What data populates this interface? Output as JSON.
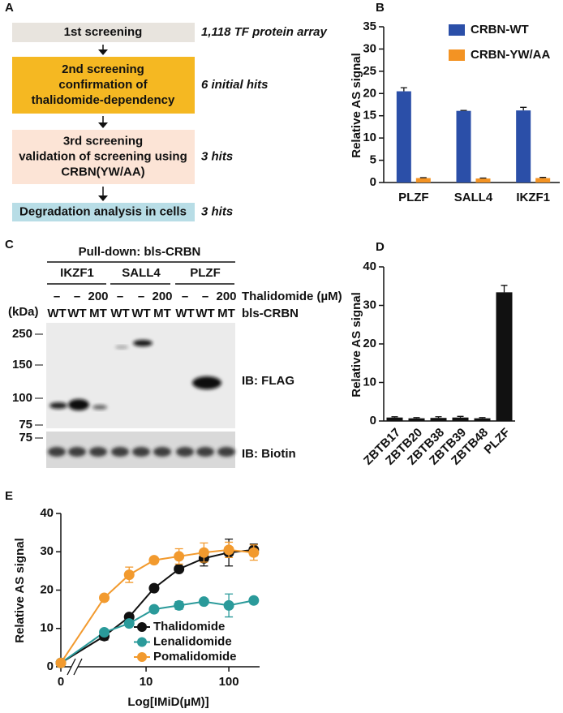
{
  "flow": {
    "panel_label": "A",
    "steps": [
      {
        "title": "1st screening",
        "lines": [],
        "note": "1,118 TF protein array"
      },
      {
        "title": "2nd screening",
        "lines": [
          "confirmation of",
          "thalidomide-dependency"
        ],
        "note": "6 initial hits"
      },
      {
        "title": "3rd screening",
        "lines": [
          "validation of screening using",
          "CRBN(YW/AA)"
        ],
        "note": "3 hits"
      },
      {
        "lines": [
          "Degradation analysis in cells"
        ],
        "note": "3 hits"
      }
    ]
  },
  "blot": {
    "panel_label": "C",
    "title": "Pull-down: bls-CRBN",
    "groups": [
      "IKZF1",
      "SALL4",
      "PLZF"
    ],
    "treatment_label": "Thalidomide (µM)",
    "construct_label": "bls-CRBN",
    "lanes": [
      {
        "thalidomide": "–",
        "crbn": "WT",
        "color": "#000000"
      },
      {
        "thalidomide": "–",
        "crbn": "WT",
        "color": "#000000"
      },
      {
        "thalidomide": "200",
        "crbn": "MT",
        "color": "#e3191b"
      },
      {
        "thalidomide": "–",
        "crbn": "WT",
        "color": "#000000"
      },
      {
        "thalidomide": "–",
        "crbn": "WT",
        "color": "#000000"
      },
      {
        "thalidomide": "200",
        "crbn": "MT",
        "color": "#e3191b"
      },
      {
        "thalidomide": "–",
        "crbn": "WT",
        "color": "#000000"
      },
      {
        "thalidomide": "–",
        "crbn": "WT",
        "color": "#000000"
      },
      {
        "thalidomide": "200",
        "crbn": "MT",
        "color": "#e3191b"
      }
    ],
    "size_label": "(kDa)",
    "upper_markers": [
      "250",
      "150",
      "100",
      "75"
    ],
    "lower_markers": [
      "75"
    ],
    "upper_probe": "IB: FLAG",
    "lower_probe": "IB: Biotin"
  },
  "chart_data": [
    {
      "type": "bar",
      "panel_label": "B",
      "ylabel": "Relative AS signal",
      "categories": [
        "PLZF",
        "SALL4",
        "IKZF1"
      ],
      "series": [
        {
          "name": "CRBN-WT",
          "color": "#2b4fa8",
          "values": [
            20.5,
            16.1,
            16.2
          ],
          "errors": [
            0.8,
            0.1,
            0.7
          ]
        },
        {
          "name": "CRBN-YW/AA",
          "color": "#f39323",
          "values": [
            1.0,
            0.9,
            1.0
          ],
          "errors": [
            0.1,
            0.1,
            0.15
          ]
        }
      ],
      "ylim": [
        0,
        35
      ],
      "yticks": [
        0,
        5,
        10,
        15,
        20,
        25,
        30,
        35
      ],
      "legend": "upper right"
    },
    {
      "type": "bar",
      "panel_label": "D",
      "ylabel": "Relative AS signal",
      "categories": [
        "ZBTB17",
        "ZBTB20",
        "ZBTB38",
        "ZBTB39",
        "ZBTB48",
        "PLZF"
      ],
      "color": "#111111",
      "values": [
        0.9,
        0.7,
        0.8,
        0.9,
        0.7,
        33.4
      ],
      "errors": [
        0.2,
        0.2,
        0.3,
        0.3,
        0.2,
        1.8
      ],
      "ylim": [
        0,
        40
      ],
      "yticks": [
        0,
        10,
        20,
        30,
        40
      ]
    },
    {
      "type": "line",
      "panel_label": "E",
      "xlabel": "Log[IMiD(µM)]",
      "ylabel": "Relative AS signal",
      "x": [
        0,
        3.125,
        6.25,
        12.5,
        25,
        50,
        100,
        200
      ],
      "xscale": "log",
      "axis_break": true,
      "xlim": [
        1.5,
        230
      ],
      "xticks": [
        0,
        10,
        100
      ],
      "ylim": [
        0,
        40
      ],
      "yticks": [
        0,
        10,
        20,
        30,
        40
      ],
      "legend": "lower right",
      "series": [
        {
          "name": "Thalidomide",
          "color": "#111111",
          "values": [
            1.0,
            8,
            13,
            20.5,
            25.5,
            28.3,
            29.8,
            30.5
          ],
          "errors": [
            0,
            1,
            0.3,
            0.3,
            0.5,
            2,
            3.5,
            1.5
          ]
        },
        {
          "name": "Lenalidomide",
          "color": "#2a9a9a",
          "values": [
            1.0,
            9,
            11.3,
            15,
            16,
            17,
            16,
            17.3
          ],
          "errors": [
            0,
            0.5,
            0.3,
            0.3,
            1,
            0.5,
            3,
            0.5
          ]
        },
        {
          "name": "Pomalidomide",
          "color": "#f29a2e",
          "values": [
            1.0,
            18,
            24,
            27.8,
            28.8,
            29.8,
            30.5,
            29.8
          ],
          "errors": [
            0,
            0.3,
            2,
            0.3,
            2,
            2.5,
            2,
            2
          ]
        }
      ]
    }
  ]
}
